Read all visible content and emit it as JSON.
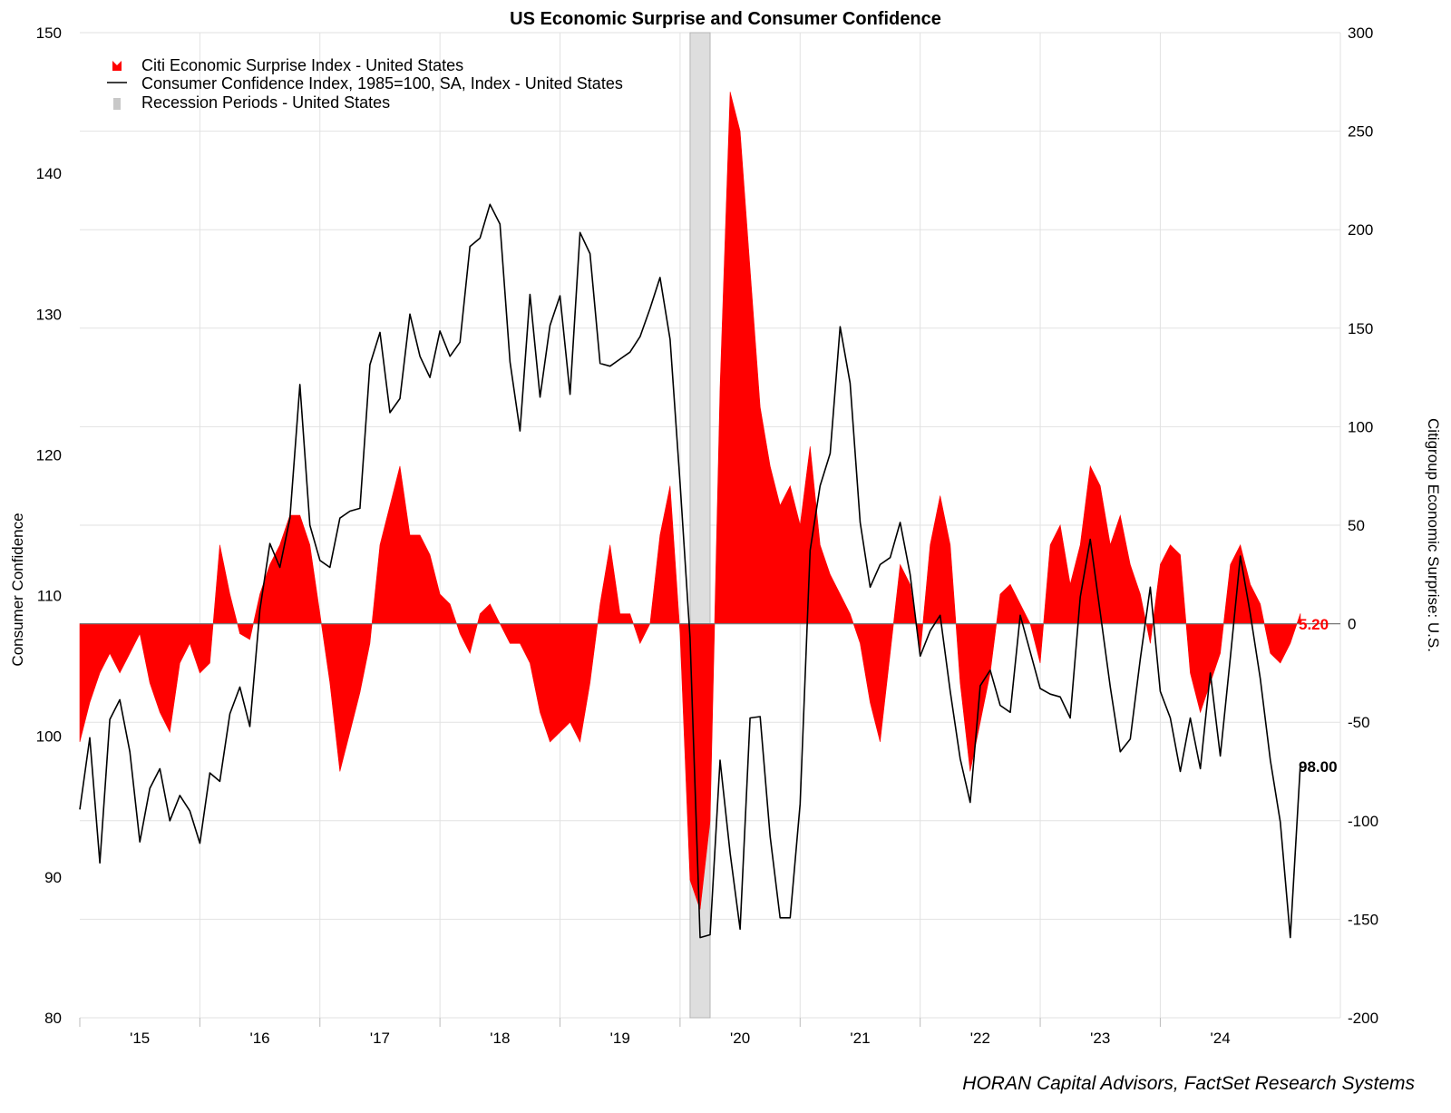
{
  "chart_data": {
    "type": "line",
    "title": "US Economic Surprise and Consumer Confidence",
    "left_axis": {
      "label": "Consumer Confidence",
      "ylim": [
        80,
        150
      ],
      "ticks": [
        "80",
        "90",
        "100",
        "110",
        "120",
        "130",
        "140",
        "150"
      ]
    },
    "right_axis": {
      "label": "Citigroup Economic Surprise: U.S.",
      "ylim": [
        -200,
        300
      ],
      "ticks": [
        "-200",
        "-150",
        "-100",
        "-50",
        "0",
        "50",
        "100",
        "150",
        "200",
        "250",
        "300"
      ]
    },
    "x_ticks": [
      "'15",
      "'16",
      "'17",
      "'18",
      "'19",
      "'20",
      "'21",
      "'22",
      "'23",
      "'24"
    ],
    "x_range": [
      "2015-01-01",
      "2025-07-01"
    ],
    "grid": true,
    "legend_position": "top-left",
    "legend": [
      {
        "label": "Citi Economic Surprise Index - United States",
        "color": "#ff0000",
        "kind": "area"
      },
      {
        "label": "Consumer Confidence Index, 1985=100, SA, Index - United States",
        "color": "#000000",
        "kind": "line"
      },
      {
        "label": "Recession Periods - United States",
        "color": "#c8c8c8",
        "kind": "band"
      }
    ],
    "recession": {
      "start": "2020-02",
      "end": "2020-04"
    },
    "series": [
      {
        "name": "Consumer Confidence Index, 1985=100, SA, Index - United States",
        "axis": "left",
        "color": "#000000",
        "points": [
          [
            "2015-01",
            94.8
          ],
          [
            "2015-02",
            99.9
          ],
          [
            "2015-03",
            91.0
          ],
          [
            "2015-04",
            101.2
          ],
          [
            "2015-05",
            102.6
          ],
          [
            "2015-06",
            98.9
          ],
          [
            "2015-07",
            92.5
          ],
          [
            "2015-08",
            96.3
          ],
          [
            "2015-09",
            97.7
          ],
          [
            "2015-10",
            94.0
          ],
          [
            "2015-11",
            95.8
          ],
          [
            "2015-12",
            94.7
          ],
          [
            "2016-01",
            92.4
          ],
          [
            "2016-02",
            97.4
          ],
          [
            "2016-03",
            96.8
          ],
          [
            "2016-04",
            101.6
          ],
          [
            "2016-05",
            103.5
          ],
          [
            "2016-06",
            100.7
          ],
          [
            "2016-07",
            109.0
          ],
          [
            "2016-08",
            113.7
          ],
          [
            "2016-09",
            112.0
          ],
          [
            "2016-10",
            115.5
          ],
          [
            "2016-11",
            125.0
          ],
          [
            "2016-12",
            115.0
          ],
          [
            "2017-01",
            112.5
          ],
          [
            "2017-02",
            112.0
          ],
          [
            "2017-03",
            115.5
          ],
          [
            "2017-04",
            116.0
          ],
          [
            "2017-05",
            116.2
          ],
          [
            "2017-06",
            126.4
          ],
          [
            "2017-07",
            128.7
          ],
          [
            "2017-08",
            123.0
          ],
          [
            "2017-09",
            124.0
          ],
          [
            "2017-10",
            130.0
          ],
          [
            "2017-11",
            127.0
          ],
          [
            "2017-12",
            125.5
          ],
          [
            "2018-01",
            128.8
          ],
          [
            "2018-02",
            127.0
          ],
          [
            "2018-03",
            128.0
          ],
          [
            "2018-04",
            134.8
          ],
          [
            "2018-05",
            135.4
          ],
          [
            "2018-06",
            137.8
          ],
          [
            "2018-07",
            136.4
          ],
          [
            "2018-08",
            126.6
          ],
          [
            "2018-09",
            121.7
          ],
          [
            "2018-10",
            131.4
          ],
          [
            "2018-11",
            124.1
          ],
          [
            "2018-12",
            129.2
          ],
          [
            "2019-01",
            131.3
          ],
          [
            "2019-02",
            124.3
          ],
          [
            "2019-03",
            135.8
          ],
          [
            "2019-04",
            134.3
          ],
          [
            "2019-05",
            126.5
          ],
          [
            "2019-06",
            126.3
          ],
          [
            "2019-07",
            126.8
          ],
          [
            "2019-08",
            127.3
          ],
          [
            "2019-09",
            128.4
          ],
          [
            "2019-10",
            130.4
          ],
          [
            "2019-11",
            132.6
          ],
          [
            "2019-12",
            128.2
          ],
          [
            "2020-01",
            118.0
          ],
          [
            "2020-02",
            107.0
          ],
          [
            "2020-03",
            85.7
          ],
          [
            "2020-04",
            85.9
          ],
          [
            "2020-05",
            98.3
          ],
          [
            "2020-06",
            91.7
          ],
          [
            "2020-07",
            86.3
          ],
          [
            "2020-08",
            101.3
          ],
          [
            "2020-09",
            101.4
          ],
          [
            "2020-10",
            92.9
          ],
          [
            "2020-11",
            87.1
          ],
          [
            "2020-12",
            87.1
          ],
          [
            "2021-01",
            95.2
          ],
          [
            "2021-02",
            113.2
          ],
          [
            "2021-03",
            117.8
          ],
          [
            "2021-04",
            120.1
          ],
          [
            "2021-05",
            129.1
          ],
          [
            "2021-06",
            125.1
          ],
          [
            "2021-07",
            115.2
          ],
          [
            "2021-08",
            110.6
          ],
          [
            "2021-09",
            112.2
          ],
          [
            "2021-10",
            112.7
          ],
          [
            "2021-11",
            115.2
          ],
          [
            "2021-12",
            111.5
          ],
          [
            "2022-01",
            105.7
          ],
          [
            "2022-02",
            107.5
          ],
          [
            "2022-03",
            108.6
          ],
          [
            "2022-04",
            103.2
          ],
          [
            "2022-05",
            98.4
          ],
          [
            "2022-06",
            95.3
          ],
          [
            "2022-07",
            103.6
          ],
          [
            "2022-08",
            104.7
          ],
          [
            "2022-09",
            102.2
          ],
          [
            "2022-10",
            101.7
          ],
          [
            "2022-11",
            108.6
          ],
          [
            "2022-12",
            106.0
          ],
          [
            "2023-01",
            103.4
          ],
          [
            "2023-02",
            103.0
          ],
          [
            "2023-03",
            102.8
          ],
          [
            "2023-04",
            101.3
          ],
          [
            "2023-05",
            109.9
          ],
          [
            "2023-06",
            114.0
          ],
          [
            "2023-07",
            108.8
          ],
          [
            "2023-08",
            103.5
          ],
          [
            "2023-09",
            98.9
          ],
          [
            "2023-10",
            99.8
          ],
          [
            "2023-11",
            105.5
          ],
          [
            "2023-12",
            110.6
          ],
          [
            "2024-01",
            103.2
          ],
          [
            "2024-02",
            101.3
          ],
          [
            "2024-03",
            97.5
          ],
          [
            "2024-04",
            101.3
          ],
          [
            "2024-05",
            97.7
          ],
          [
            "2024-06",
            104.5
          ],
          [
            "2024-07",
            98.6
          ],
          [
            "2024-08",
            105.6
          ],
          [
            "2024-09",
            112.8
          ],
          [
            "2024-10",
            108.7
          ],
          [
            "2024-11",
            104.1
          ],
          [
            "2024-12",
            98.3
          ],
          [
            "2025-01",
            93.9
          ],
          [
            "2025-02",
            85.7
          ],
          [
            "2025-03",
            98.0
          ]
        ],
        "last_value_label": "98.00"
      },
      {
        "name": "Citi Economic Surprise Index - United States",
        "axis": "right",
        "color": "#ff0000",
        "type": "area",
        "points": [
          [
            "2015-01",
            -60
          ],
          [
            "2015-02",
            -40
          ],
          [
            "2015-03",
            -25
          ],
          [
            "2015-04",
            -15
          ],
          [
            "2015-05",
            -25
          ],
          [
            "2015-06",
            -15
          ],
          [
            "2015-07",
            -5
          ],
          [
            "2015-08",
            -30
          ],
          [
            "2015-09",
            -45
          ],
          [
            "2015-10",
            -55
          ],
          [
            "2015-11",
            -20
          ],
          [
            "2015-12",
            -10
          ],
          [
            "2016-01",
            -25
          ],
          [
            "2016-02",
            -20
          ],
          [
            "2016-03",
            40
          ],
          [
            "2016-04",
            15
          ],
          [
            "2016-05",
            -5
          ],
          [
            "2016-06",
            -8
          ],
          [
            "2016-07",
            15
          ],
          [
            "2016-08",
            30
          ],
          [
            "2016-09",
            40
          ],
          [
            "2016-10",
            55
          ],
          [
            "2016-11",
            55
          ],
          [
            "2016-12",
            40
          ],
          [
            "2017-01",
            5
          ],
          [
            "2017-02",
            -30
          ],
          [
            "2017-03",
            -75
          ],
          [
            "2017-04",
            -55
          ],
          [
            "2017-05",
            -35
          ],
          [
            "2017-06",
            -10
          ],
          [
            "2017-07",
            40
          ],
          [
            "2017-08",
            60
          ],
          [
            "2017-09",
            80
          ],
          [
            "2017-10",
            45
          ],
          [
            "2017-11",
            45
          ],
          [
            "2017-12",
            35
          ],
          [
            "2018-01",
            15
          ],
          [
            "2018-02",
            10
          ],
          [
            "2018-03",
            -5
          ],
          [
            "2018-04",
            -15
          ],
          [
            "2018-05",
            5
          ],
          [
            "2018-06",
            10
          ],
          [
            "2018-07",
            0
          ],
          [
            "2018-08",
            -10
          ],
          [
            "2018-09",
            -10
          ],
          [
            "2018-10",
            -20
          ],
          [
            "2018-11",
            -45
          ],
          [
            "2018-12",
            -60
          ],
          [
            "2019-01",
            -55
          ],
          [
            "2019-02",
            -50
          ],
          [
            "2019-03",
            -60
          ],
          [
            "2019-04",
            -30
          ],
          [
            "2019-05",
            10
          ],
          [
            "2019-06",
            40
          ],
          [
            "2019-07",
            5
          ],
          [
            "2019-08",
            5
          ],
          [
            "2019-09",
            -10
          ],
          [
            "2019-10",
            0
          ],
          [
            "2019-11",
            45
          ],
          [
            "2019-12",
            70
          ],
          [
            "2020-01",
            -5
          ],
          [
            "2020-02",
            -130
          ],
          [
            "2020-03",
            -145
          ],
          [
            "2020-04",
            -100
          ],
          [
            "2020-05",
            120
          ],
          [
            "2020-06",
            270
          ],
          [
            "2020-07",
            250
          ],
          [
            "2020-08",
            180
          ],
          [
            "2020-09",
            110
          ],
          [
            "2020-10",
            80
          ],
          [
            "2020-11",
            60
          ],
          [
            "2020-12",
            70
          ],
          [
            "2021-01",
            50
          ],
          [
            "2021-02",
            90
          ],
          [
            "2021-03",
            40
          ],
          [
            "2021-04",
            25
          ],
          [
            "2021-05",
            15
          ],
          [
            "2021-06",
            5
          ],
          [
            "2021-07",
            -10
          ],
          [
            "2021-08",
            -40
          ],
          [
            "2021-09",
            -60
          ],
          [
            "2021-10",
            -15
          ],
          [
            "2021-11",
            30
          ],
          [
            "2021-12",
            20
          ],
          [
            "2022-01",
            -15
          ],
          [
            "2022-02",
            40
          ],
          [
            "2022-03",
            65
          ],
          [
            "2022-04",
            40
          ],
          [
            "2022-05",
            -30
          ],
          [
            "2022-06",
            -75
          ],
          [
            "2022-07",
            -50
          ],
          [
            "2022-08",
            -25
          ],
          [
            "2022-09",
            15
          ],
          [
            "2022-10",
            20
          ],
          [
            "2022-11",
            10
          ],
          [
            "2022-12",
            0
          ],
          [
            "2023-01",
            -20
          ],
          [
            "2023-02",
            40
          ],
          [
            "2023-03",
            50
          ],
          [
            "2023-04",
            20
          ],
          [
            "2023-05",
            40
          ],
          [
            "2023-06",
            80
          ],
          [
            "2023-07",
            70
          ],
          [
            "2023-08",
            40
          ],
          [
            "2023-09",
            55
          ],
          [
            "2023-10",
            30
          ],
          [
            "2023-11",
            15
          ],
          [
            "2023-12",
            -10
          ],
          [
            "2024-01",
            30
          ],
          [
            "2024-02",
            40
          ],
          [
            "2024-03",
            35
          ],
          [
            "2024-04",
            -25
          ],
          [
            "2024-05",
            -45
          ],
          [
            "2024-06",
            -30
          ],
          [
            "2024-07",
            -15
          ],
          [
            "2024-08",
            30
          ],
          [
            "2024-09",
            40
          ],
          [
            "2024-10",
            20
          ],
          [
            "2024-11",
            10
          ],
          [
            "2024-12",
            -15
          ],
          [
            "2025-01",
            -20
          ],
          [
            "2025-02",
            -10
          ],
          [
            "2025-03",
            5.2
          ]
        ],
        "last_value_label": "5.20"
      }
    ],
    "source": "HORAN Capital Advisors, FactSet Research Systems"
  }
}
